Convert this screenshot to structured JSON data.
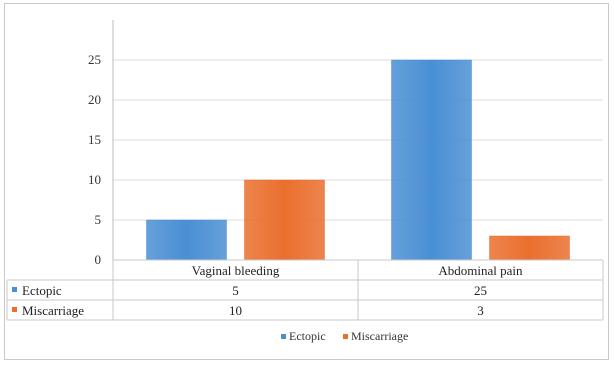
{
  "chart_data": {
    "type": "bar",
    "categories": [
      "Vaginal bleeding",
      "Abdominal pain"
    ],
    "series": [
      {
        "name": "Ectopic",
        "values": [
          5,
          25
        ],
        "color": "#4a8fd4"
      },
      {
        "name": "Miscarriage",
        "values": [
          10,
          3
        ],
        "color": "#ea6f2e"
      }
    ],
    "ylim": [
      0,
      30
    ],
    "yticks": [
      0,
      5,
      10,
      15,
      20,
      25
    ],
    "grid": true,
    "data_table": true,
    "legend": "bottom",
    "title": "",
    "xlabel": "",
    "ylabel": ""
  }
}
